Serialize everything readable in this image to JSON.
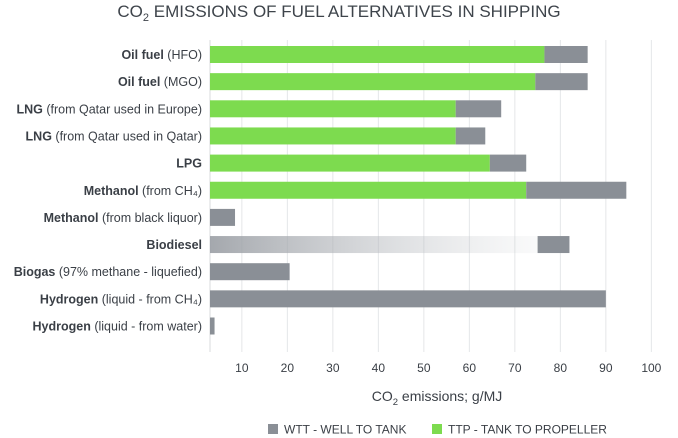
{
  "chart_data": {
    "type": "bar",
    "orientation": "horizontal",
    "stacked": true,
    "title": {
      "prefix": "CO",
      "subscript": "2",
      "suffix": " EMISSIONS OF FUEL ALTERNATIVES IN SHIPPING"
    },
    "xlabel": {
      "prefix": "CO",
      "subscript": "2",
      "suffix": " emissions; g/MJ"
    },
    "xlim": [
      3,
      103
    ],
    "xticks": [
      10,
      20,
      30,
      40,
      50,
      60,
      70,
      80,
      90,
      100
    ],
    "grid": true,
    "categories": [
      {
        "bold": "Oil fuel",
        "rest": " (HFO)"
      },
      {
        "bold": "Oil fuel",
        "rest": " (MGO)"
      },
      {
        "bold": "LNG",
        "rest": " (from Qatar used in Europe)"
      },
      {
        "bold": "LNG",
        "rest": " (from Qatar used in Qatar)"
      },
      {
        "bold": "LPG",
        "rest": ""
      },
      {
        "bold": "Methanol",
        "rest": " (from CH₄)"
      },
      {
        "bold": "Methanol",
        "rest": " (from black liquor)"
      },
      {
        "bold": "Biodiesel",
        "rest": ""
      },
      {
        "bold": "Biogas",
        "rest": " (97% methane - liquefied)"
      },
      {
        "bold": "Hydrogen",
        "rest": " (liquid - from CH₄)"
      },
      {
        "bold": "Hydrogen",
        "rest": " (liquid - from water)"
      }
    ],
    "series": [
      {
        "name": "WTT - WELL TO TANK",
        "color": "#8a8f96",
        "values": [
          9.5,
          11.5,
          10,
          6.5,
          8,
          22,
          5.5,
          7,
          17.5,
          87,
          1
        ]
      },
      {
        "name": "TTP - TANK TO PROPELLER",
        "color": "#7ddb4f",
        "values": [
          73.5,
          71.5,
          54,
          54,
          61.5,
          69.5,
          0,
          72,
          0,
          0,
          0
        ],
        "faded": [
          false,
          false,
          false,
          false,
          false,
          false,
          false,
          true,
          false,
          false,
          false
        ]
      }
    ],
    "legend": {
      "position": "bottom-right",
      "items": [
        {
          "label": "WTT - WELL TO TANK",
          "color": "#8a8f96"
        },
        {
          "label": "TTP - TANK TO PROPELLER",
          "color": "#7ddb4f"
        }
      ]
    }
  }
}
